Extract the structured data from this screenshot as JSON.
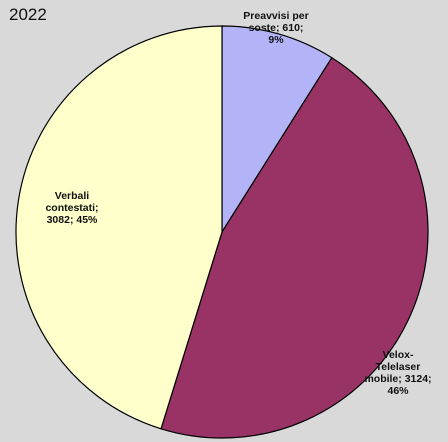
{
  "chart_data": {
    "type": "pie",
    "title": "2022",
    "slices": [
      {
        "label": "Preavvisi per soste",
        "value": 610,
        "percent": "9%",
        "color": "#b3b3f7"
      },
      {
        "label": "Velox-Telelaser mobile",
        "value": 3124,
        "percent": "46%",
        "color": "#993366"
      },
      {
        "label": "Verbali contestati",
        "value": 3082,
        "percent": "45%",
        "color": "#ffffcc"
      }
    ],
    "data_labels": [
      "Preavvisi per\nsoste; 610;\n9%",
      "Velox-\nTelelaser\nmobile; 3124;\n46%",
      "Verbali\ncontestati;\n3082; 45%"
    ],
    "start_angle_deg": 0,
    "direction": "clockwise",
    "legend": "none"
  }
}
